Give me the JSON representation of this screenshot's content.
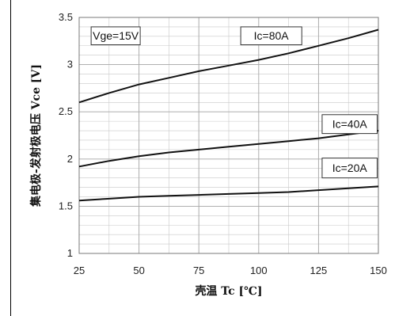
{
  "chart_data": {
    "type": "line",
    "title": "",
    "xlabel": "壳温 Tc [℃]",
    "ylabel": "集电极-发射极电压 Vce [V]",
    "xlim": [
      25,
      150
    ],
    "ylim": [
      1,
      3.5
    ],
    "xticks": [
      25,
      50,
      75,
      100,
      125,
      150
    ],
    "yticks": [
      1,
      1.5,
      2,
      2.5,
      3,
      3.5
    ],
    "xtick_labels": [
      "25",
      "50",
      "75",
      "100",
      "125",
      "150"
    ],
    "ytick_labels": [
      "1",
      "1.5",
      "2",
      "2.5",
      "3",
      "3.5"
    ],
    "grid": true,
    "x": [
      25,
      37.5,
      50,
      62.5,
      75,
      87.5,
      100,
      112.5,
      125,
      137.5,
      150
    ],
    "series": [
      {
        "name": "Ic=80A",
        "values": [
          2.6,
          2.7,
          2.79,
          2.86,
          2.93,
          2.99,
          3.05,
          3.12,
          3.2,
          3.28,
          3.37
        ]
      },
      {
        "name": "Ic=40A",
        "values": [
          1.92,
          1.98,
          2.03,
          2.07,
          2.1,
          2.13,
          2.16,
          2.19,
          2.22,
          2.26,
          2.3
        ]
      },
      {
        "name": "Ic=20A",
        "values": [
          1.56,
          1.58,
          1.6,
          1.61,
          1.62,
          1.63,
          1.64,
          1.65,
          1.67,
          1.69,
          1.71
        ]
      }
    ],
    "annotations": [
      "Vge=15V",
      "Ic=80A",
      "Ic=40A",
      "Ic=20A"
    ],
    "colors": {
      "line": "#111111",
      "grid": "#c8c8c8",
      "axis": "#7a7a7a"
    }
  }
}
